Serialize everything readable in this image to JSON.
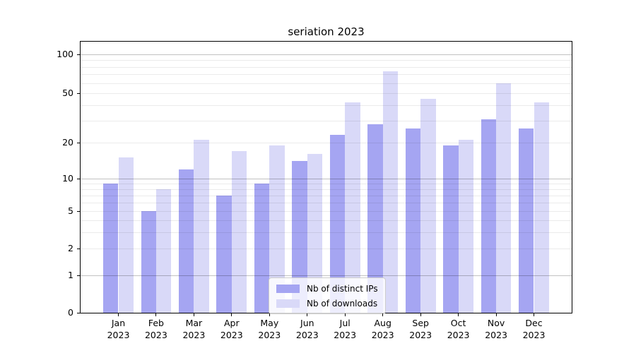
{
  "chart_data": {
    "type": "bar",
    "title": "seriation 2023",
    "categories": [
      "Jan 2023",
      "Feb 2023",
      "Mar 2023",
      "Apr 2023",
      "May 2023",
      "Jun 2023",
      "Jul 2023",
      "Aug 2023",
      "Sep 2023",
      "Oct 2023",
      "Nov 2023",
      "Dec 2023"
    ],
    "months": [
      "Jan",
      "Feb",
      "Mar",
      "Apr",
      "May",
      "Jun",
      "Jul",
      "Aug",
      "Sep",
      "Oct",
      "Nov",
      "Dec"
    ],
    "year": "2023",
    "series": [
      {
        "name": "Nb of distinct IPs",
        "color": "#a5a5f2",
        "values": [
          9,
          5,
          12,
          7,
          9,
          14,
          23,
          28,
          26,
          19,
          31,
          26
        ]
      },
      {
        "name": "Nb of downloads",
        "color": "#d9d9f8",
        "values": [
          15,
          8,
          21,
          17,
          19,
          16,
          42,
          74,
          45,
          21,
          60,
          42
        ]
      }
    ],
    "yscale": "log above 1, linear 0-1",
    "yticks": [
      0,
      1,
      2,
      5,
      10,
      20,
      50,
      100
    ],
    "minor_gridlines": [
      3,
      4,
      6,
      7,
      8,
      9,
      30,
      40,
      60,
      70,
      80,
      90
    ],
    "major_gridlines": [
      1,
      10,
      100
    ],
    "ylim": [
      0,
      110
    ],
    "grid": true,
    "legend_position": "lower center inside plot",
    "axis_color": "#000000"
  }
}
